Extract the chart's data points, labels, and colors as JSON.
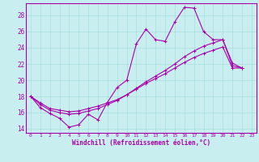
{
  "xlabel": "Windchill (Refroidissement éolien,°C)",
  "bg_color": "#c8eef0",
  "grid_color": "#aadddd",
  "line_color": "#aa00aa",
  "spine_color": "#aa00aa",
  "xlim": [
    -0.5,
    23.5
  ],
  "ylim": [
    13.5,
    29.5
  ],
  "xticks": [
    0,
    1,
    2,
    3,
    4,
    5,
    6,
    7,
    8,
    9,
    10,
    11,
    12,
    13,
    14,
    15,
    16,
    17,
    18,
    19,
    20,
    21,
    22,
    23
  ],
  "yticks": [
    14,
    16,
    18,
    20,
    22,
    24,
    26,
    28
  ],
  "series1_x": [
    0,
    1,
    2,
    3,
    4,
    5,
    6,
    7,
    8,
    9,
    10,
    11,
    12,
    13,
    14,
    15,
    16,
    17,
    18,
    19,
    20,
    21,
    22
  ],
  "series1_y": [
    18.0,
    16.6,
    15.9,
    15.3,
    14.2,
    14.5,
    15.8,
    15.1,
    17.3,
    19.1,
    20.0,
    24.5,
    26.3,
    25.0,
    24.8,
    27.2,
    29.0,
    28.9,
    26.0,
    25.0,
    25.0,
    22.1,
    21.5
  ],
  "series2_x": [
    0,
    1,
    2,
    3,
    4,
    5,
    6,
    7,
    8,
    9,
    10,
    11,
    12,
    13,
    14,
    15,
    16,
    17,
    18,
    19,
    20,
    21,
    22
  ],
  "series2_y": [
    18.0,
    17.2,
    16.5,
    16.3,
    16.1,
    16.2,
    16.5,
    16.8,
    17.2,
    17.6,
    18.2,
    18.9,
    19.6,
    20.2,
    20.8,
    21.5,
    22.2,
    22.8,
    23.3,
    23.7,
    24.1,
    21.5,
    21.5
  ],
  "series3_x": [
    0,
    1,
    2,
    3,
    4,
    5,
    6,
    7,
    8,
    9,
    10,
    11,
    12,
    13,
    14,
    15,
    16,
    17,
    18,
    19,
    20,
    21,
    22
  ],
  "series3_y": [
    18.0,
    17.0,
    16.3,
    16.0,
    15.8,
    15.9,
    16.2,
    16.5,
    17.0,
    17.5,
    18.2,
    19.0,
    19.8,
    20.5,
    21.2,
    22.0,
    22.9,
    23.6,
    24.2,
    24.6,
    25.0,
    21.8,
    21.5
  ],
  "lw": 0.8,
  "ms": 2.5,
  "mew": 0.7,
  "xlabel_fontsize": 5.5,
  "ytick_fontsize": 5.5,
  "xtick_fontsize": 4.5
}
